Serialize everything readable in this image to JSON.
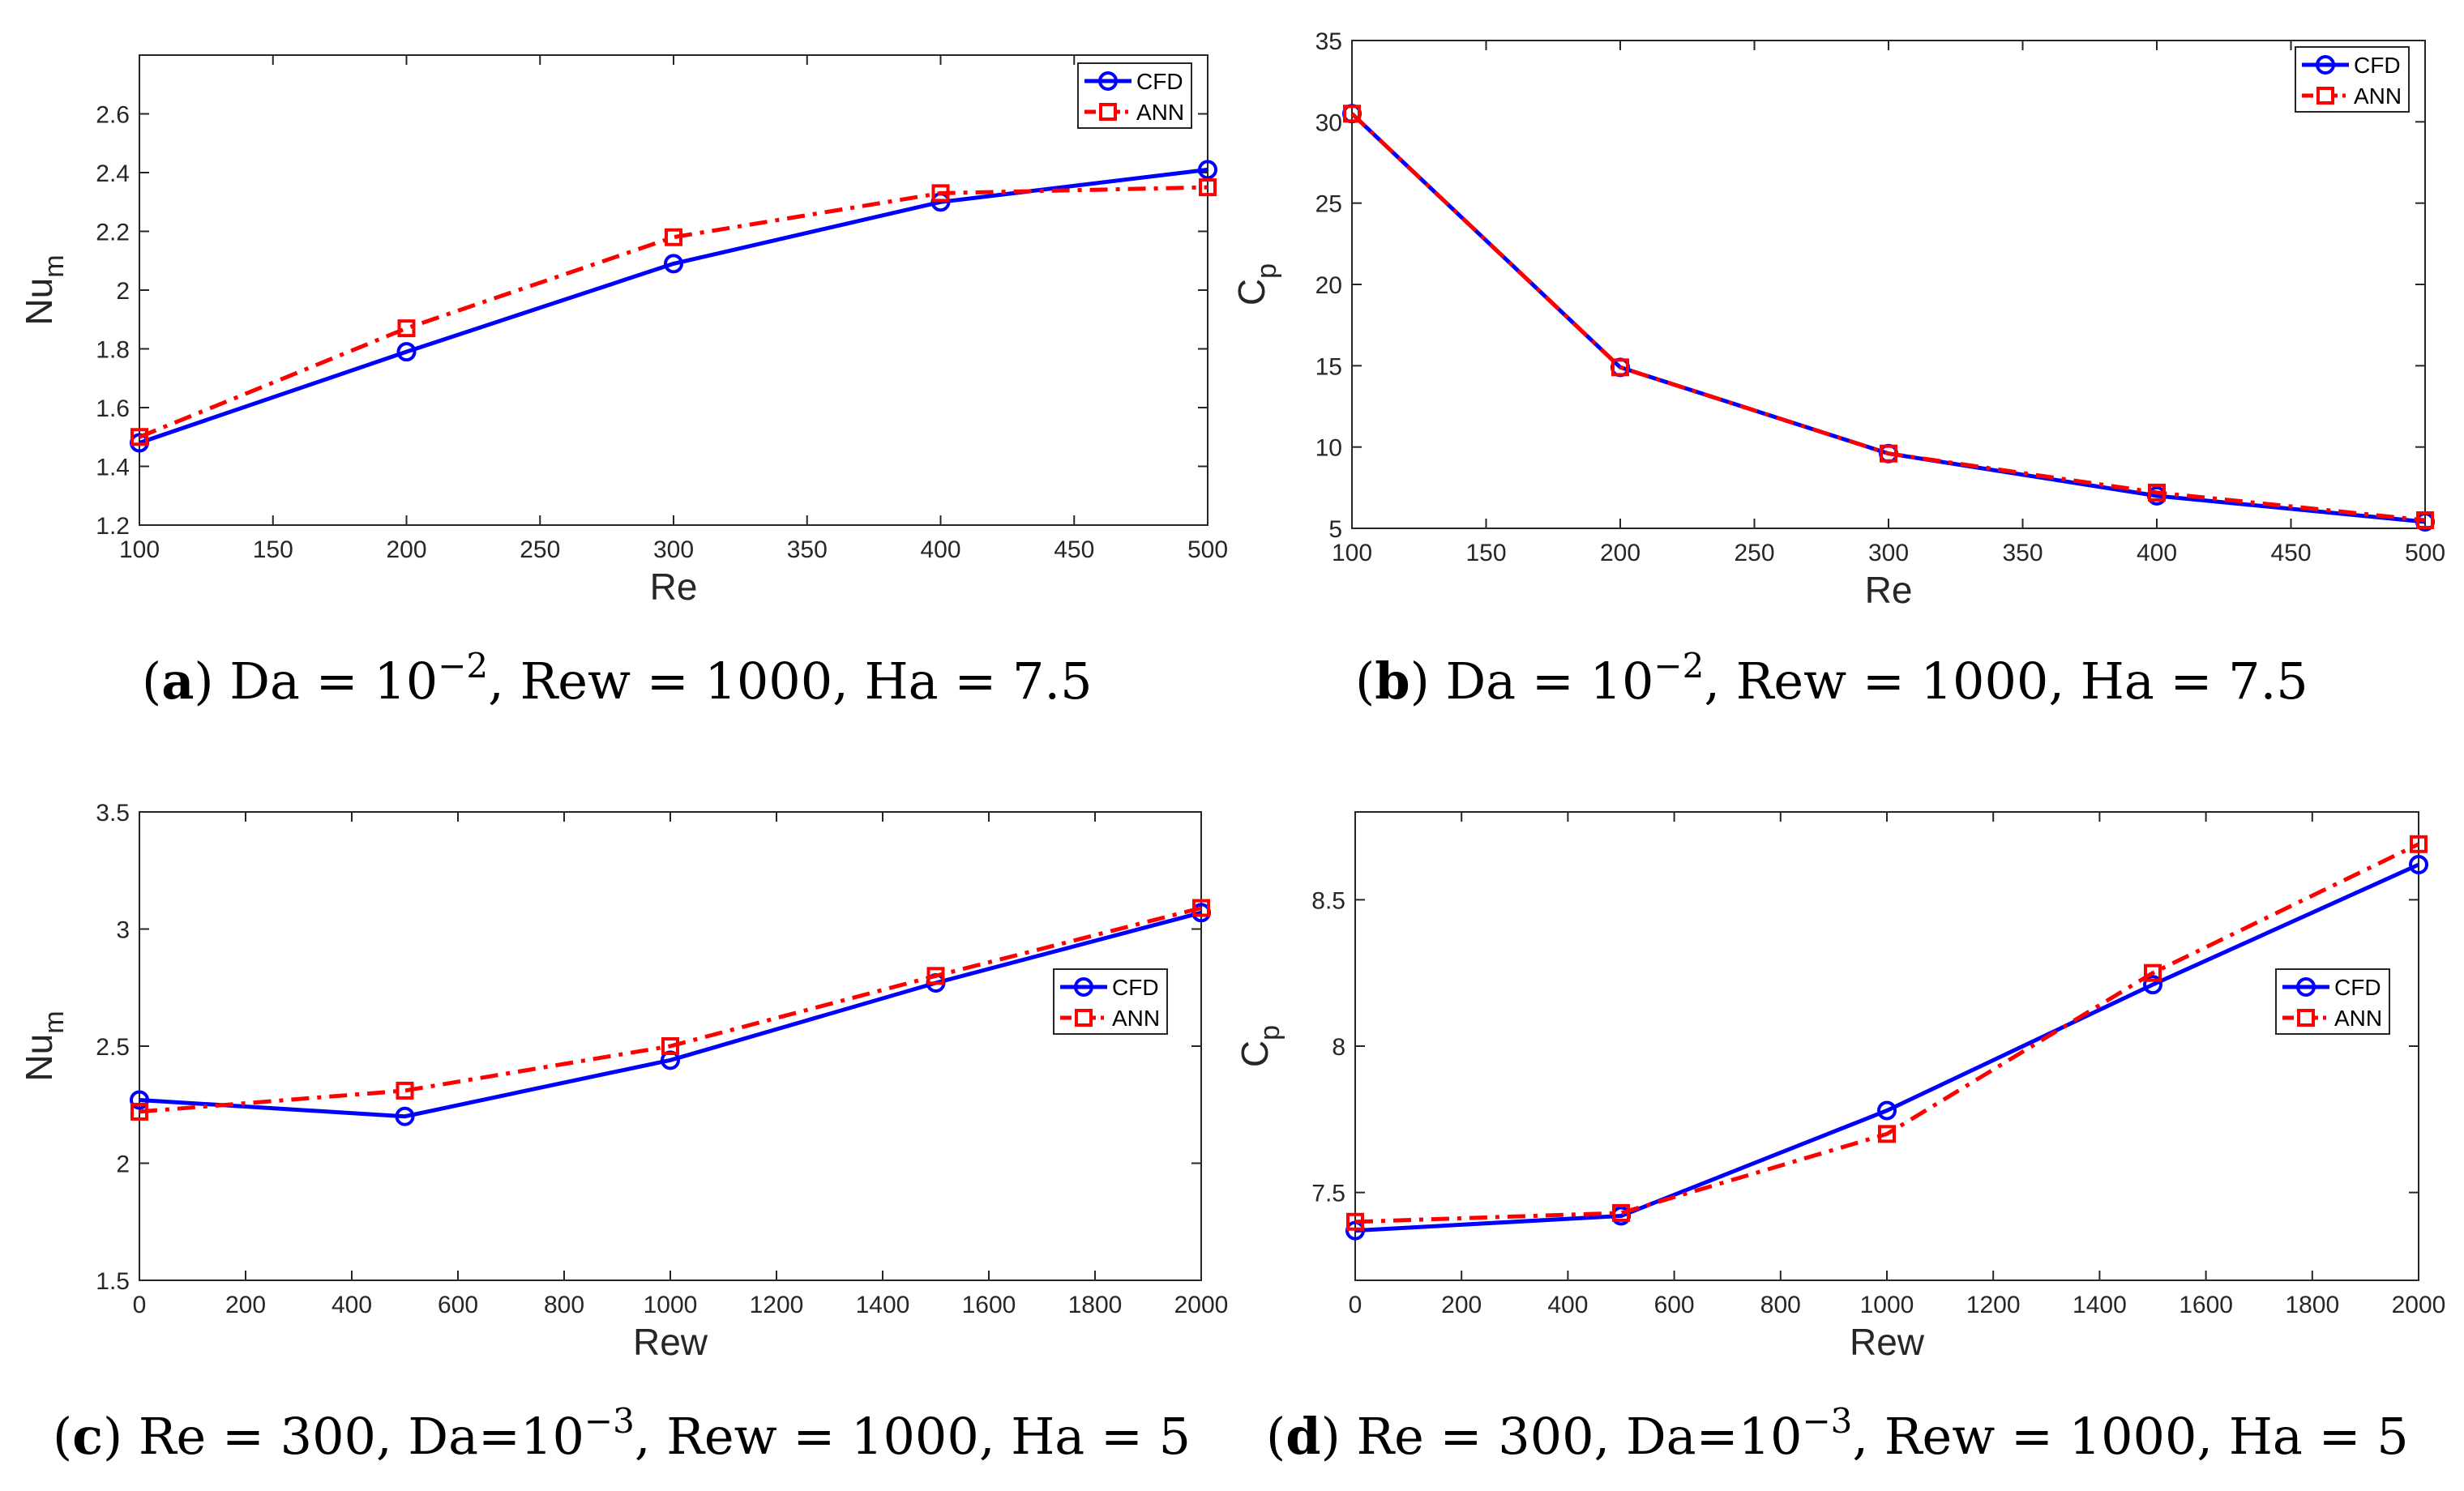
{
  "colors": {
    "cfd": "#0000ff",
    "ann": "#ff0000",
    "axis": "#262626",
    "frame": "#7f7f7f"
  },
  "chart_data": [
    {
      "id": "a",
      "type": "line",
      "xlabel": "Re",
      "ylabel": "Nu",
      "ylabel_sub": "m",
      "x": [
        100,
        200,
        300,
        400,
        500
      ],
      "xlim": [
        100,
        500
      ],
      "ylim": [
        1.2,
        2.8
      ],
      "xticks": [
        100,
        150,
        200,
        250,
        300,
        350,
        400,
        450,
        500
      ],
      "yticks": [
        1.2,
        1.4,
        1.6,
        1.8,
        2,
        2.2,
        2.4,
        2.6
      ],
      "ytick_labels": [
        "1.2",
        "1.4",
        "1.6",
        "1.8",
        "2",
        "2.2",
        "2.4",
        "2.6"
      ],
      "series": [
        {
          "name": "CFD",
          "values": [
            1.48,
            1.79,
            2.09,
            2.3,
            2.41
          ]
        },
        {
          "name": "ANN",
          "values": [
            1.5,
            1.87,
            2.18,
            2.33,
            2.35
          ]
        }
      ],
      "legend": "top-right",
      "caption": {
        "letter": "a",
        "pre": " Da = 10",
        "sup": "−2",
        "post": ", Rew = 1000, Ha = 7.5"
      }
    },
    {
      "id": "b",
      "type": "line",
      "xlabel": "Re",
      "ylabel": "C",
      "ylabel_sub": "p",
      "x": [
        100,
        200,
        300,
        400,
        500
      ],
      "xlim": [
        100,
        500
      ],
      "ylim": [
        5,
        35
      ],
      "xticks": [
        100,
        150,
        200,
        250,
        300,
        350,
        400,
        450,
        500
      ],
      "yticks": [
        5,
        10,
        15,
        20,
        25,
        30,
        35
      ],
      "ytick_labels": [
        "5",
        "10",
        "15",
        "20",
        "25",
        "30",
        "35"
      ],
      "series": [
        {
          "name": "CFD",
          "values": [
            30.5,
            14.9,
            9.6,
            7.0,
            5.4
          ]
        },
        {
          "name": "ANN",
          "values": [
            30.5,
            14.9,
            9.6,
            7.2,
            5.5
          ]
        }
      ],
      "legend": "top-right",
      "caption": {
        "letter": "b",
        "pre": " Da = 10",
        "sup": "−2",
        "post": ", Rew = 1000, Ha = 7.5"
      }
    },
    {
      "id": "c",
      "type": "line",
      "xlabel": "Rew",
      "ylabel": "Nu",
      "ylabel_sub": "m",
      "x": [
        0,
        500,
        1000,
        1500,
        2000
      ],
      "xlim": [
        0,
        2000
      ],
      "ylim": [
        1.5,
        3.5
      ],
      "xticks": [
        0,
        200,
        400,
        600,
        800,
        1000,
        1200,
        1400,
        1600,
        1800,
        2000
      ],
      "yticks": [
        1.5,
        2,
        2.5,
        3,
        3.5
      ],
      "ytick_labels": [
        "1.5",
        "2",
        "2.5",
        "3",
        "3.5"
      ],
      "series": [
        {
          "name": "CFD",
          "values": [
            2.27,
            2.2,
            2.44,
            2.77,
            3.07
          ]
        },
        {
          "name": "ANN",
          "values": [
            2.22,
            2.31,
            2.5,
            2.8,
            3.09
          ]
        }
      ],
      "legend": "right",
      "caption": {
        "letter": "c",
        "pre": " Re = 300, Da=10",
        "sup": "−3",
        "post": ", Rew = 1000, Ha = 5"
      }
    },
    {
      "id": "d",
      "type": "line",
      "xlabel": "Rew",
      "ylabel": "C",
      "ylabel_sub": "p",
      "x": [
        0,
        500,
        1000,
        1500,
        2000
      ],
      "xlim": [
        0,
        2000
      ],
      "ylim": [
        7.2,
        8.8
      ],
      "xticks": [
        0,
        200,
        400,
        600,
        800,
        1000,
        1200,
        1400,
        1600,
        1800,
        2000
      ],
      "yticks": [
        7.5,
        8,
        8.5
      ],
      "ytick_labels": [
        "7.5",
        "8",
        "8.5"
      ],
      "series": [
        {
          "name": "CFD",
          "values": [
            7.37,
            7.42,
            7.78,
            8.21,
            8.62
          ]
        },
        {
          "name": "ANN",
          "values": [
            7.4,
            7.43,
            7.7,
            8.25,
            8.69
          ]
        }
      ],
      "legend": "right",
      "caption": {
        "letter": "d",
        "pre": " Re = 300, Da=10",
        "sup": "−3",
        "post": ", Rew = 1000, Ha = 5"
      }
    }
  ]
}
